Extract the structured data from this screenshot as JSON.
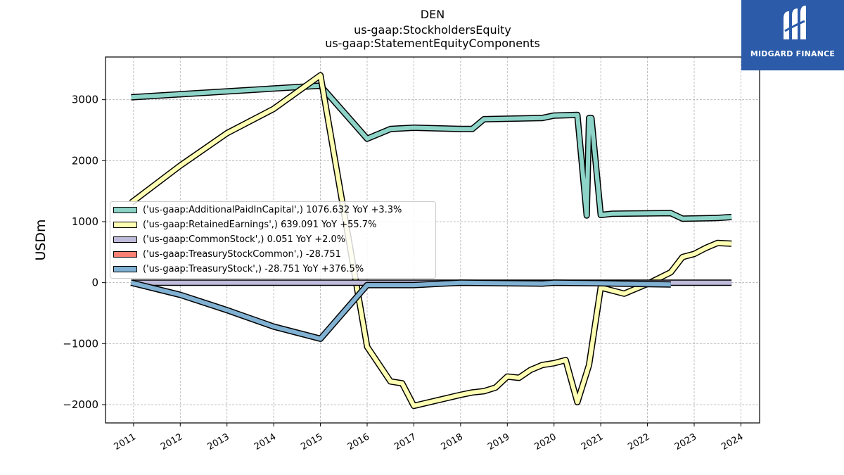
{
  "chart_data": {
    "type": "line",
    "title_lines": [
      "DEN",
      "us-gaap:StockholdersEquity",
      "us-gaap:StatementEquityComponents"
    ],
    "ylabel": "USDm",
    "xlabel": "",
    "xlim": [
      2010.4,
      2024.4
    ],
    "ylim": [
      -2300,
      3700
    ],
    "yticks": [
      -2000,
      -1000,
      0,
      1000,
      2000,
      3000
    ],
    "ytick_labels": [
      "−2000",
      "−1000",
      "0",
      "1000",
      "2000",
      "3000"
    ],
    "xticks": [
      2011,
      2012,
      2013,
      2014,
      2015,
      2016,
      2017,
      2018,
      2019,
      2020,
      2021,
      2022,
      2023,
      2024
    ],
    "xtick_labels": [
      "2011",
      "2012",
      "2013",
      "2014",
      "2015",
      "2016",
      "2017",
      "2018",
      "2019",
      "2020",
      "2021",
      "2022",
      "2023",
      "2024"
    ],
    "grid": true,
    "legend_position": "center-left",
    "series": [
      {
        "name": "('us-gaap:AdditionalPaidInCapital',) 1076.632 YoY +3.3%",
        "color": "#8dd3c7",
        "x": [
          2010.95,
          2015.0,
          2016.0,
          2016.5,
          2017.0,
          2018.0,
          2018.25,
          2018.5,
          2019.75,
          2020.0,
          2020.5,
          2020.7,
          2020.75,
          2020.8,
          2021.0,
          2021.25,
          2022.5,
          2022.75,
          2023.5,
          2023.8
        ],
        "y": [
          3040,
          3230,
          2360,
          2520,
          2540,
          2520,
          2520,
          2680,
          2700,
          2740,
          2750,
          1100,
          2700,
          2700,
          1110,
          1130,
          1140,
          1050,
          1060,
          1076.632
        ]
      },
      {
        "name": "('us-gaap:RetainedEarnings',) 639.091 YoY +55.7%",
        "color": "#ffffb3",
        "x": [
          2010.95,
          2012.0,
          2013.0,
          2014.0,
          2015.0,
          2016.0,
          2016.5,
          2016.75,
          2017.0,
          2018.0,
          2018.25,
          2018.5,
          2018.75,
          2019.0,
          2019.25,
          2019.5,
          2019.75,
          2020.0,
          2020.25,
          2020.5,
          2020.75,
          2021.0,
          2021.5,
          2022.0,
          2022.5,
          2022.75,
          2023.0,
          2023.25,
          2023.5,
          2023.8
        ],
        "y": [
          1310,
          1920,
          2450,
          2850,
          3400,
          -1050,
          -1620,
          -1650,
          -2020,
          -1840,
          -1800,
          -1780,
          -1720,
          -1540,
          -1560,
          -1430,
          -1350,
          -1320,
          -1270,
          -1960,
          -1350,
          -80,
          -180,
          -20,
          170,
          420,
          470,
          570,
          650,
          639.091
        ]
      },
      {
        "name": "('us-gaap:CommonStock',) 0.051 YoY +2.0%",
        "color": "#bebada",
        "x": [
          2010.95,
          2023.8
        ],
        "y": [
          0.05,
          0.051
        ]
      },
      {
        "name": "('us-gaap:TreasuryStockCommon',) -28.751",
        "color": "#fb8072",
        "x": [],
        "y": []
      },
      {
        "name": "('us-gaap:TreasuryStock',) -28.751 YoY +376.5%",
        "color": "#80b1d3",
        "x": [
          2010.95,
          2012.0,
          2013.0,
          2014.0,
          2015.0,
          2016.0,
          2017.0,
          2018.0,
          2019.0,
          2019.75,
          2020.0,
          2021.0,
          2022.0,
          2022.5
        ],
        "y": [
          0,
          -200,
          -450,
          -720,
          -920,
          -40,
          -40,
          0,
          -10,
          -15,
          0,
          -10,
          -25,
          -28.751
        ]
      }
    ]
  },
  "brand": {
    "name": "MIDGARD FINANCE",
    "bg_color": "#2b5ba9"
  }
}
